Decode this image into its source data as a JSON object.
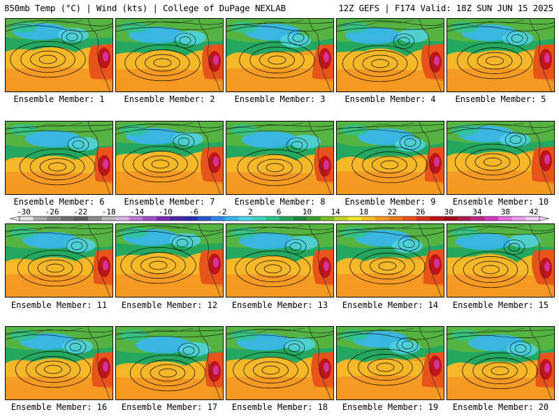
{
  "header": {
    "left": "850mb Temp (°C) | Wind (kts) | College of DuPage NEXLAB",
    "right": "12Z GEFS | F174 Valid: 18Z SUN JUN 15 2025"
  },
  "panels": [
    {
      "label": "Ensemble Member: 1"
    },
    {
      "label": "Ensemble Member: 2"
    },
    {
      "label": "Ensemble Member: 3"
    },
    {
      "label": "Ensemble Member: 4"
    },
    {
      "label": "Ensemble Member: 5"
    },
    {
      "label": "Ensemble Member: 6"
    },
    {
      "label": "Ensemble Member: 7"
    },
    {
      "label": "Ensemble Member: 8"
    },
    {
      "label": "Ensemble Member: 9"
    },
    {
      "label": "Ensemble Member: 10"
    },
    {
      "label": "Ensemble Member: 11"
    },
    {
      "label": "Ensemble Member: 12"
    },
    {
      "label": "Ensemble Member: 13"
    },
    {
      "label": "Ensemble Member: 14"
    },
    {
      "label": "Ensemble Member: 15"
    },
    {
      "label": "Ensemble Member: 16"
    },
    {
      "label": "Ensemble Member: 17"
    },
    {
      "label": "Ensemble Member: 18"
    },
    {
      "label": "Ensemble Member: 19"
    },
    {
      "label": "Ensemble Member: 20"
    }
  ],
  "colorbar": {
    "ticks": [
      "-30",
      "-26",
      "-22",
      "-18",
      "-14",
      "-10",
      "-6",
      "-2",
      "2",
      "6",
      "10",
      "14",
      "18",
      "22",
      "26",
      "30",
      "34",
      "38",
      "42"
    ],
    "colors": [
      "#e8e8e8",
      "#a9a9a9",
      "#8a8a8a",
      "#707070",
      "#5e5e5e",
      "#8c8c8c",
      "#b7b7b7",
      "#dcb6e8",
      "#c07ad8",
      "#a24ec8",
      "#7c2bb5",
      "#4e25a6",
      "#2c2fb1",
      "#2a55d2",
      "#2c88ea",
      "#38b6f2",
      "#4fd4e8",
      "#3fd6c0",
      "#2ec48e",
      "#24a860",
      "#1c8a3c",
      "#3fa02f",
      "#7dbd28",
      "#bfd427",
      "#f0ee2a",
      "#f6c12a",
      "#f59a22",
      "#ef7a1c",
      "#e7531a",
      "#d82d18",
      "#c0141a",
      "#a0101e",
      "#a81c4e",
      "#c02a86",
      "#d43cc0",
      "#e66ee0",
      "#efa0ec",
      "#f6d0f4"
    ]
  },
  "colors": {
    "land_warm": "#e7531a",
    "ocean_warm": "#f59a22",
    "cool": "#38b6f2",
    "mid": "#24a860"
  }
}
